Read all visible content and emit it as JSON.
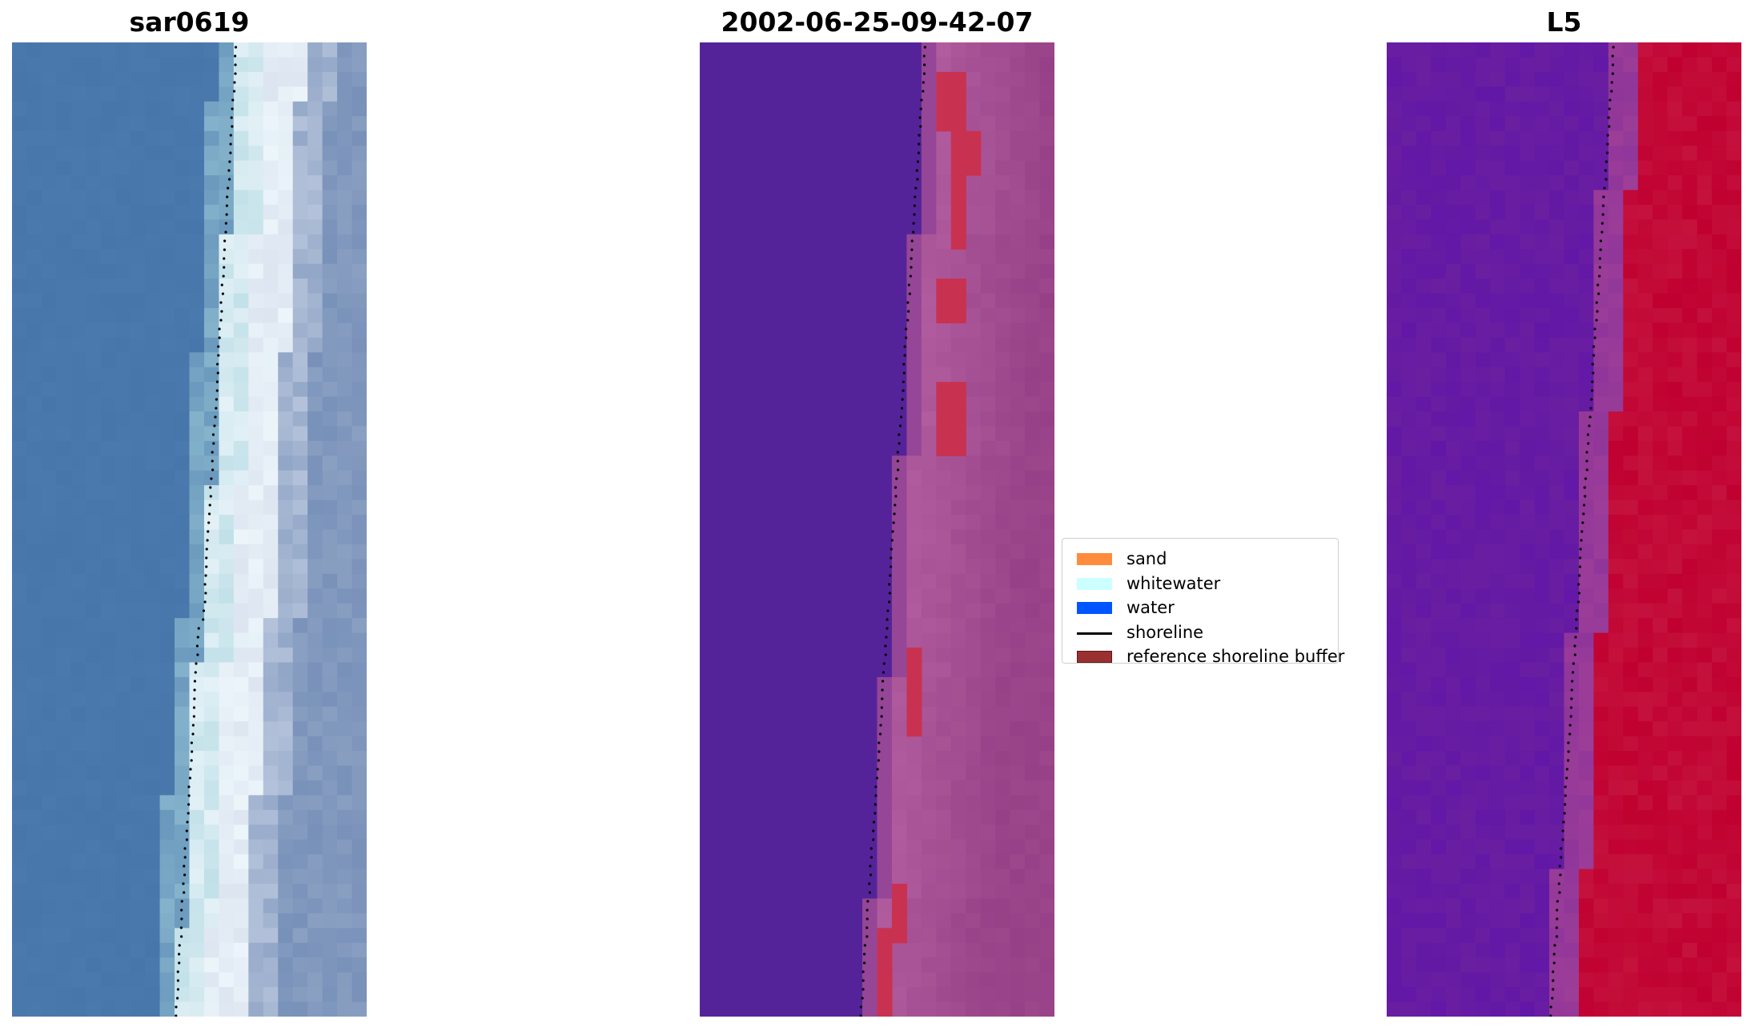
{
  "panels": [
    {
      "title": "sar0619",
      "palette": "rgb"
    },
    {
      "title": "2002-06-25-09-42-07",
      "palette": "class"
    },
    {
      "title": "L5",
      "palette": "index"
    }
  ],
  "legend": {
    "placement": "center-right of middle panel",
    "items": [
      {
        "label": "sand",
        "color": "#ff8c3c"
      },
      {
        "label": "whitewater",
        "color": "#ccffff"
      },
      {
        "label": "water",
        "color": "#0055ff"
      },
      {
        "label": "shoreline",
        "color": "#000000"
      },
      {
        "label": "reference shoreline buffer",
        "color": "#9b3030"
      }
    ]
  },
  "colors": {
    "water_rgb": "#4a7aad",
    "class_water": "#552399",
    "index_water": "#6a1fa0",
    "index_land": "#c00030"
  }
}
